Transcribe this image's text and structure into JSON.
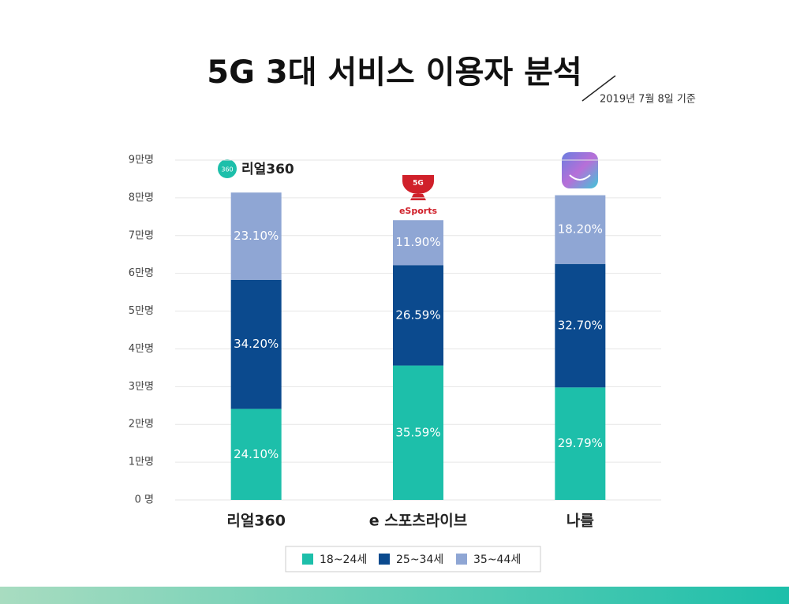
{
  "chart_data": {
    "type": "stacked_bar",
    "title": "5G 3대 서비스 이용자 분석",
    "subtitle": "2019년 7월 8일 기준",
    "logo_texts": [
      "리얼360",
      "5G",
      "eSports"
    ],
    "categories": [
      "리얼360",
      "e 스포츠라이브",
      "나를"
    ],
    "series": [
      {
        "name": "18~24세",
        "color": "#1dbfaa",
        "values": [
          2.41,
          3.559,
          2.979
        ],
        "value_labels": [
          "24.10%",
          "35.59%",
          "29.79%"
        ]
      },
      {
        "name": "25~34세",
        "color": "#0b4a8e",
        "values": [
          3.42,
          2.659,
          3.27
        ],
        "value_labels": [
          "34.20%",
          "26.59%",
          "32.70%"
        ]
      },
      {
        "name": "35~44세",
        "color": "#8fa6d4",
        "values": [
          2.31,
          1.19,
          1.82
        ],
        "value_labels": [
          "23.10%",
          "11.90%",
          "18.20%"
        ]
      }
    ],
    "ylim": [
      0,
      9
    ],
    "yticks": [
      {
        "value": 0,
        "label": "0 명"
      },
      {
        "value": 1,
        "label": "1만명"
      },
      {
        "value": 2,
        "label": "2만명"
      },
      {
        "value": 3,
        "label": "3만명"
      },
      {
        "value": 4,
        "label": "4만명"
      },
      {
        "value": 5,
        "label": "5만명"
      },
      {
        "value": 6,
        "label": "6만명"
      },
      {
        "value": 7,
        "label": "7만명"
      },
      {
        "value": 8,
        "label": "8만명"
      },
      {
        "value": 9,
        "label": "9만명"
      }
    ],
    "grid": true
  }
}
